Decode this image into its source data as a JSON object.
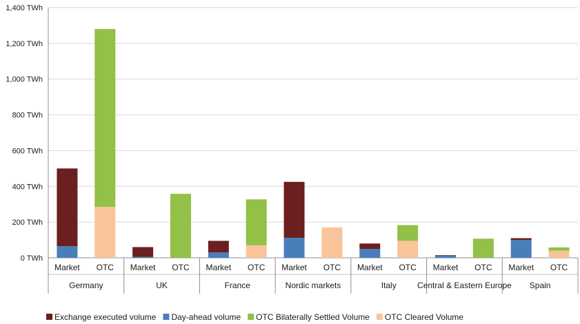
{
  "chart_data": {
    "type": "bar",
    "stacked": true,
    "ylim": [
      0,
      1400
    ],
    "yticks": [
      {
        "value": 0,
        "label": "0 TWh"
      },
      {
        "value": 200,
        "label": "200 TWh"
      },
      {
        "value": 400,
        "label": "400 TWh"
      },
      {
        "value": 600,
        "label": "600 TWh"
      },
      {
        "value": 800,
        "label": "800 TWh"
      },
      {
        "value": 1000,
        "label": "1,000 TWh"
      },
      {
        "value": 1200,
        "label": "1,200 TWh"
      },
      {
        "value": 1400,
        "label": "1,400 TWh"
      }
    ],
    "grid": true,
    "legend_position": "bottom",
    "groups": [
      {
        "name": "Germany",
        "categories": [
          "Market",
          "OTC"
        ]
      },
      {
        "name": "UK",
        "categories": [
          "Market",
          "OTC"
        ]
      },
      {
        "name": "France",
        "categories": [
          "Market",
          "OTC"
        ]
      },
      {
        "name": "Nordic markets",
        "categories": [
          "Market",
          "OTC"
        ]
      },
      {
        "name": "Italy",
        "categories": [
          "Market",
          "OTC"
        ]
      },
      {
        "name": "Central & Eastern Europe",
        "categories": [
          "Market",
          "OTC"
        ]
      },
      {
        "name": "Spain",
        "categories": [
          "Market",
          "OTC"
        ]
      }
    ],
    "series": [
      {
        "name": "Day-ahead volume",
        "color": "#4a7ebb",
        "values": [
          65,
          0,
          5,
          0,
          30,
          0,
          112,
          0,
          50,
          0,
          12,
          0,
          100,
          0
        ]
      },
      {
        "name": "Exchange executed volume",
        "color": "#6b1f1f",
        "values": [
          435,
          0,
          55,
          0,
          65,
          0,
          313,
          0,
          30,
          0,
          3,
          0,
          10,
          0
        ]
      },
      {
        "name": "OTC Cleared Volume",
        "color": "#f9c49a",
        "values": [
          0,
          285,
          0,
          0,
          0,
          70,
          0,
          170,
          0,
          95,
          0,
          0,
          0,
          40
        ]
      },
      {
        "name": "OTC Bilaterally Settled Volume",
        "color": "#93c047",
        "values": [
          0,
          995,
          0,
          358,
          0,
          257,
          0,
          0,
          0,
          88,
          0,
          107,
          0,
          18
        ]
      }
    ],
    "legend_order": [
      "Exchange executed volume",
      "Day-ahead volume",
      "OTC Bilaterally Settled Volume",
      "OTC Cleared Volume"
    ]
  }
}
